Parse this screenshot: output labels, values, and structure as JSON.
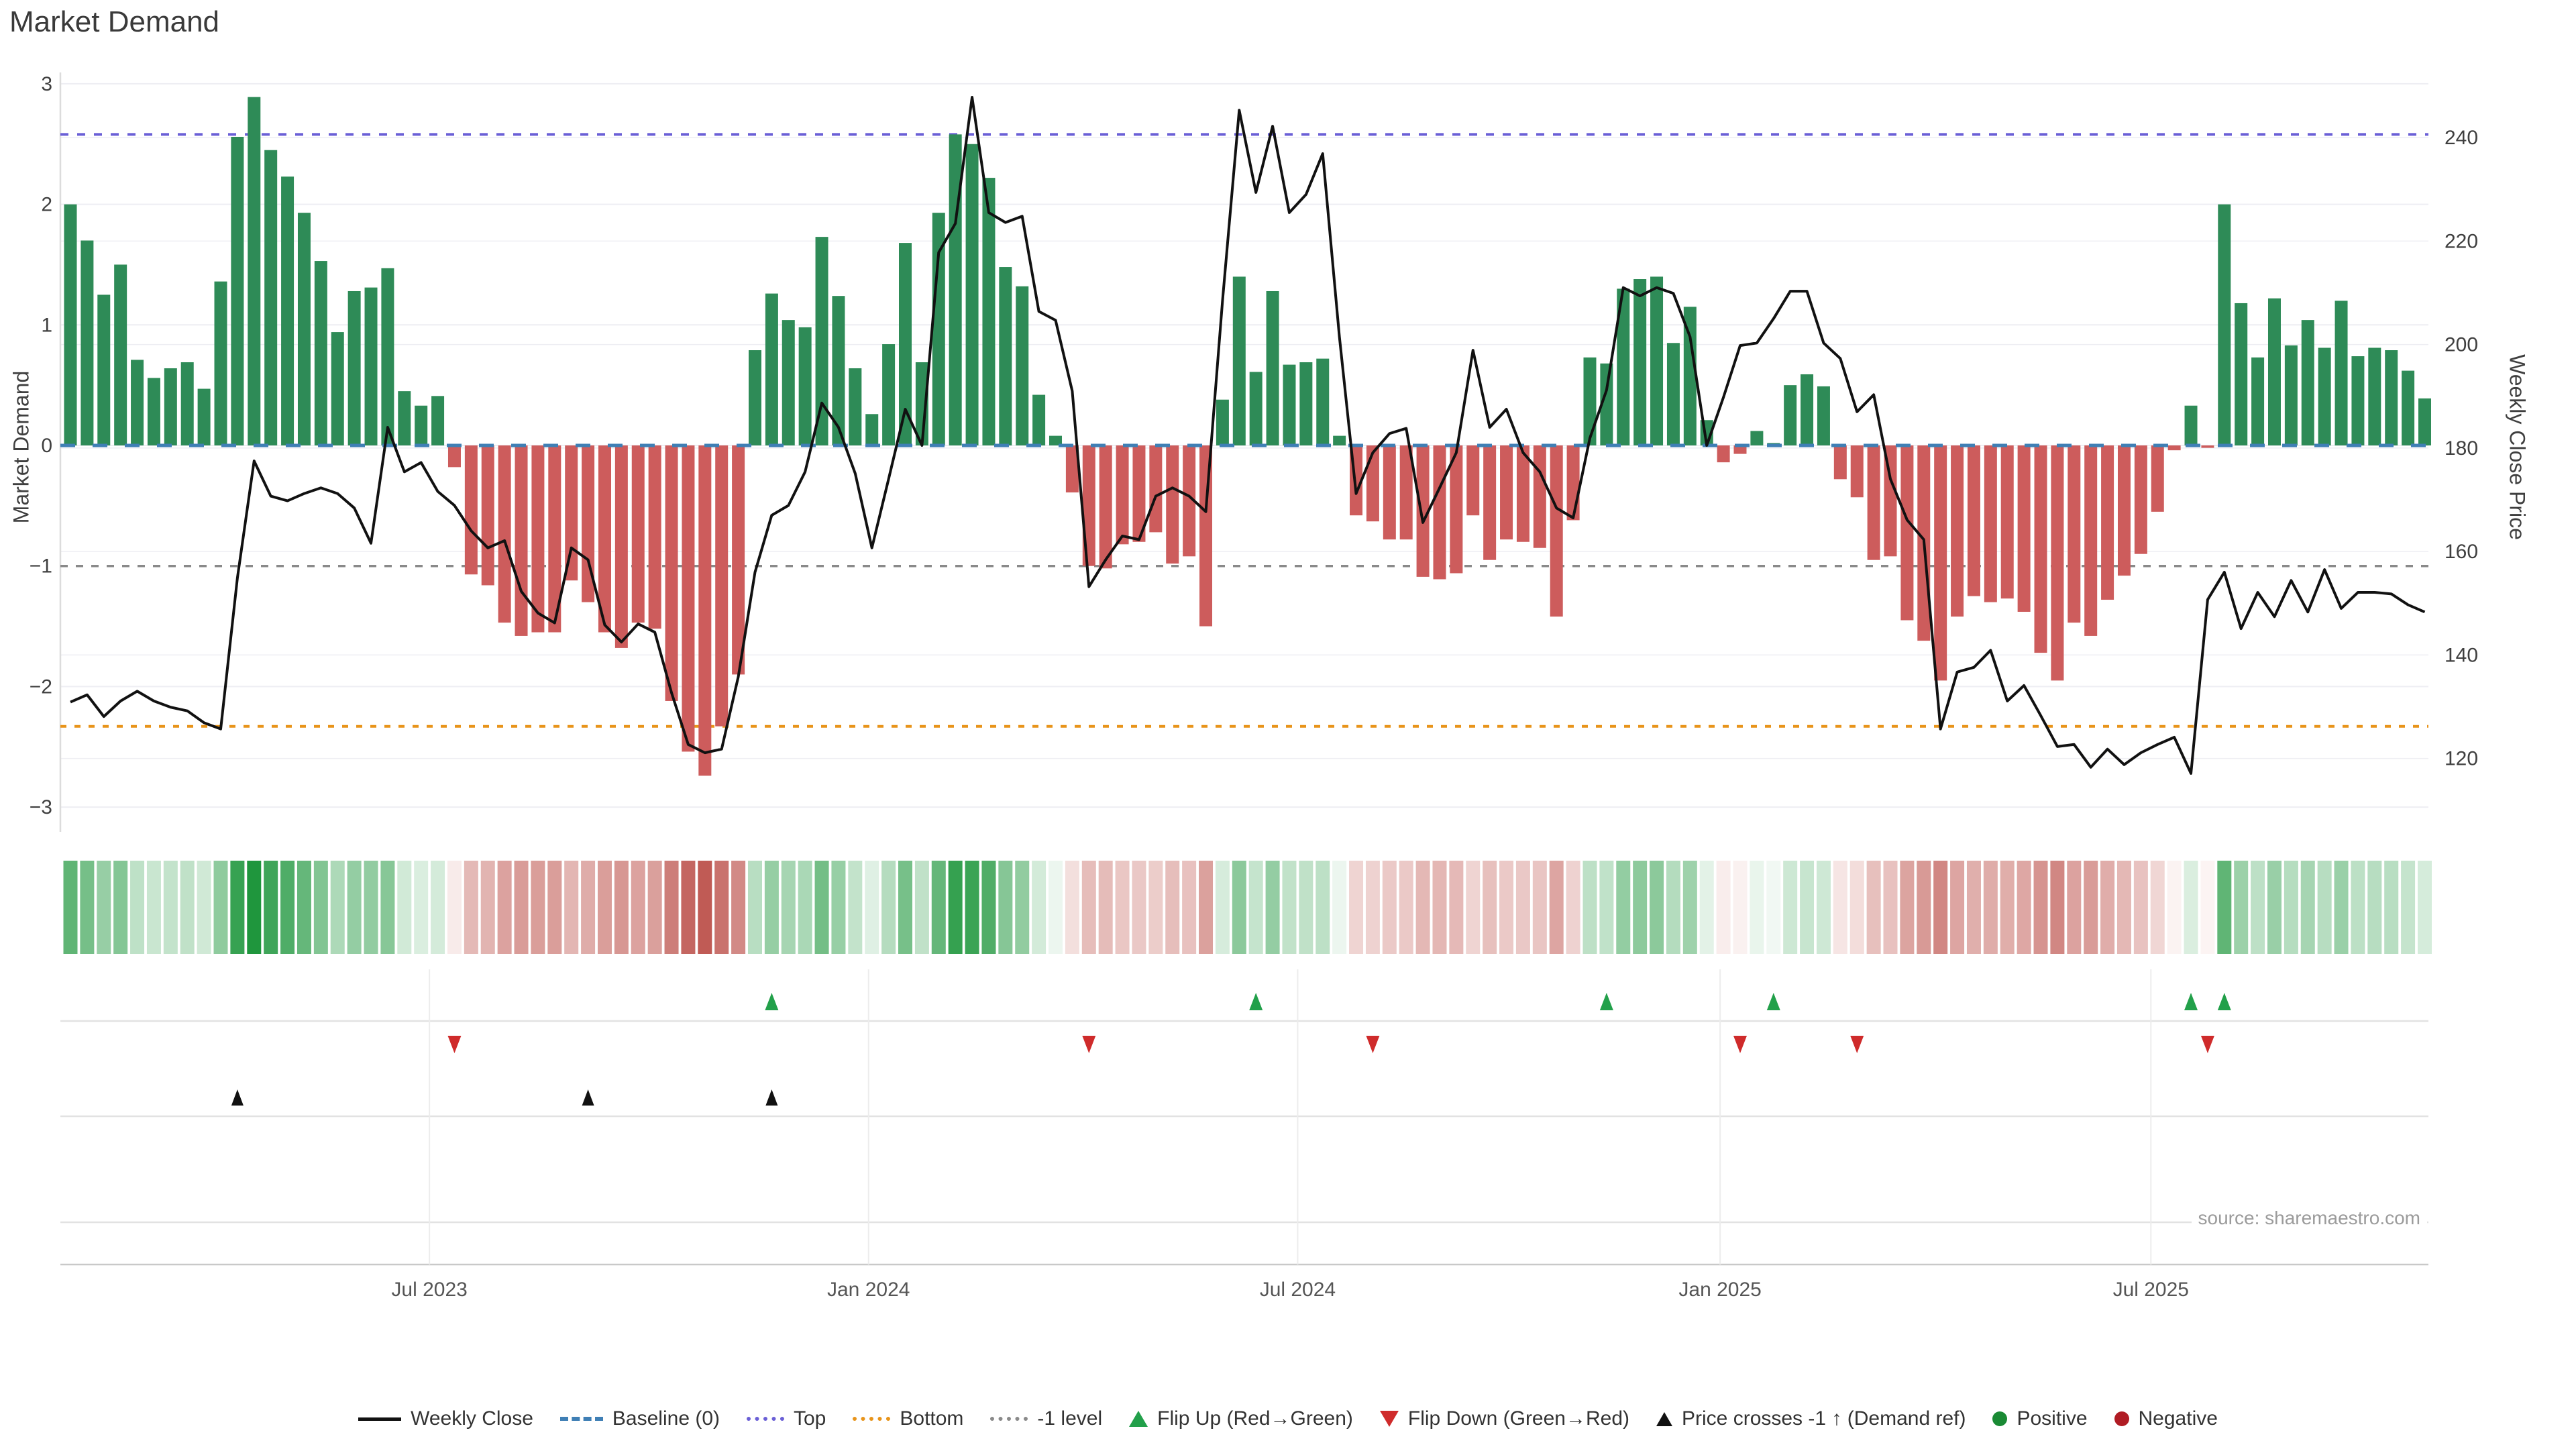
{
  "title": "Market Demand",
  "source": "source: sharemaestro.com",
  "y_left": {
    "label": "Market Demand",
    "ticks": [
      3,
      2,
      1,
      0,
      -1,
      -2,
      -3
    ]
  },
  "y_right": {
    "label": "Weekly Close Price",
    "ticks": [
      240,
      220,
      200,
      180,
      160,
      140,
      120
    ]
  },
  "colors": {
    "bar_positive": "#2e8b57",
    "bar_negative": "#cd5c5c",
    "price_line": "#111111",
    "baseline": "#3f7fb5",
    "top_line": "#6a5fd6",
    "bottom_line": "#e8941a",
    "minus1_line": "#8a8a8a",
    "flip_up": "#22a04a",
    "flip_down": "#cf2b2b",
    "price_cross": "#111111",
    "positive_dot": "#1a8a34",
    "negative_dot": "#b01c24",
    "grid": "#eeeef3",
    "separator": "#e2e2e2",
    "axis_line": "#c9c9c9",
    "tick_text": "#3f3f3f",
    "date_text": "#555555"
  },
  "legend": [
    {
      "label": "Weekly Close",
      "type": "line",
      "color": "#111111"
    },
    {
      "label": "Baseline (0)",
      "type": "dash",
      "color": "#3f7fb5"
    },
    {
      "label": "Top",
      "type": "dot",
      "color": "#6a5fd6"
    },
    {
      "label": "Bottom",
      "type": "dot",
      "color": "#e8941a"
    },
    {
      "label": "-1 level",
      "type": "dot",
      "color": "#8a8a8a"
    },
    {
      "label": "Flip Up (Red→Green)",
      "type": "tri-up",
      "color": "#22a04a"
    },
    {
      "label": "Flip Down (Green→Red)",
      "type": "tri-down",
      "color": "#cf2b2b"
    },
    {
      "label": "Price crosses -1 ↑ (Demand ref)",
      "type": "tri-up-black",
      "color": "#111111"
    },
    {
      "label": "Positive",
      "type": "circle",
      "color": "#1a8a34"
    },
    {
      "label": "Negative",
      "type": "circle",
      "color": "#b01c24"
    }
  ],
  "chart_data": {
    "type": "combo",
    "title": "Market Demand",
    "x_tick_labels": [
      "Jul 2023",
      "Jan 2024",
      "Jul 2024",
      "Jan 2025",
      "Jul 2025"
    ],
    "x_tick_positions": [
      21.5,
      47.8,
      73.5,
      98.8,
      124.6
    ],
    "ylim_left": [
      -3.15,
      3.15
    ],
    "left_ticks": [
      3,
      2,
      1,
      0,
      -1,
      -2,
      -3
    ],
    "right_ticks": [
      240,
      220,
      200,
      180,
      160,
      140,
      120
    ],
    "right_axis_map": {
      "price_at_zero": 180.5,
      "price_per_unit": 23.3
    },
    "ref_lines": {
      "baseline": 0,
      "top": 2.58,
      "bottom": -2.33,
      "minus1": -1
    },
    "series": [
      {
        "name": "Market Demand",
        "type": "bar",
        "axis": "left",
        "values": [
          2.0,
          1.7,
          1.25,
          1.5,
          0.71,
          0.56,
          0.64,
          0.69,
          0.47,
          1.36,
          2.56,
          2.89,
          2.45,
          2.23,
          1.93,
          1.53,
          0.94,
          1.28,
          1.31,
          1.47,
          0.45,
          0.33,
          0.41,
          -0.18,
          -1.07,
          -1.16,
          -1.47,
          -1.58,
          -1.55,
          -1.55,
          -1.12,
          -1.3,
          -1.55,
          -1.68,
          -1.47,
          -1.52,
          -2.12,
          -2.54,
          -2.74,
          -2.33,
          -1.9,
          0.79,
          1.26,
          1.04,
          0.98,
          1.73,
          1.24,
          0.64,
          0.26,
          0.84,
          1.68,
          0.69,
          1.93,
          2.58,
          2.5,
          2.22,
          1.48,
          1.32,
          0.42,
          0.08,
          -0.39,
          -1.0,
          -1.02,
          -0.82,
          -0.8,
          -0.72,
          -0.98,
          -0.92,
          -1.5,
          0.38,
          1.4,
          0.61,
          1.28,
          0.67,
          0.69,
          0.72,
          0.08,
          -0.58,
          -0.63,
          -0.78,
          -0.78,
          -1.09,
          -1.11,
          -1.06,
          -0.58,
          -0.95,
          -0.78,
          -0.8,
          -0.85,
          -1.42,
          -0.62,
          0.73,
          0.68,
          1.3,
          1.38,
          1.4,
          0.85,
          1.15,
          0.21,
          -0.14,
          -0.07,
          0.12,
          0.02,
          0.5,
          0.59,
          0.49,
          -0.28,
          -0.43,
          -0.95,
          -0.92,
          -1.45,
          -1.62,
          -1.95,
          -1.42,
          -1.25,
          -1.3,
          -1.27,
          -1.38,
          -1.72,
          -1.95,
          -1.47,
          -1.58,
          -1.28,
          -1.08,
          -0.9,
          -0.55,
          -0.04,
          0.33,
          -0.02,
          2.0,
          1.18,
          0.73,
          1.22,
          0.83,
          1.04,
          0.81,
          1.2,
          0.74,
          0.81,
          0.79,
          0.62,
          0.39
        ]
      },
      {
        "name": "Weekly Close",
        "type": "line",
        "axis": "right",
        "values": [
          130.9,
          132.3,
          128.1,
          131.1,
          133.0,
          131.1,
          129.9,
          129.2,
          126.9,
          125.7,
          154.9,
          177.5,
          170.7,
          169.8,
          171.2,
          172.3,
          171.2,
          168.4,
          161.6,
          184.0,
          175.4,
          177.2,
          171.6,
          168.9,
          164.0,
          160.7,
          162.1,
          152.3,
          148.1,
          146.2,
          160.7,
          158.4,
          145.8,
          142.5,
          146.0,
          144.4,
          132.7,
          122.7,
          121.1,
          121.8,
          135.8,
          156.0,
          167.0,
          168.9,
          175.4,
          188.7,
          184.0,
          175.1,
          160.7,
          174.0,
          187.5,
          180.5,
          217.8,
          223.4,
          247.8,
          225.5,
          223.6,
          224.8,
          206.4,
          204.7,
          191.0,
          153.2,
          158.4,
          163.0,
          162.3,
          170.7,
          172.3,
          170.7,
          167.7,
          208.5,
          245.3,
          229.4,
          242.2,
          225.5,
          229.0,
          236.9,
          201.5,
          171.2,
          179.1,
          182.8,
          183.8,
          165.6,
          172.3,
          179.1,
          198.9,
          184.0,
          187.5,
          179.1,
          175.4,
          168.4,
          166.5,
          181.9,
          191.2,
          211.0,
          209.4,
          211.0,
          209.9,
          201.5,
          180.5,
          189.8,
          199.8,
          200.3,
          205.0,
          210.3,
          210.3,
          200.3,
          197.3,
          187.0,
          190.3,
          174.0,
          166.1,
          162.3,
          125.7,
          136.7,
          137.6,
          140.9,
          131.1,
          134.1,
          128.3,
          122.3,
          122.7,
          118.3,
          121.8,
          118.8,
          121.1,
          122.7,
          124.1,
          117.1,
          150.7,
          156.0,
          145.1,
          152.1,
          147.4,
          154.4,
          148.3,
          156.5,
          149.0,
          152.1,
          152.1,
          151.8,
          149.7,
          148.3
        ]
      }
    ],
    "heatmap": {
      "note": "weekly strip shaded by Market Demand value",
      "derived_from": "Market Demand"
    },
    "markers": {
      "flip_up": [
        42,
        71,
        92,
        102,
        127,
        129
      ],
      "flip_down": [
        23,
        61,
        78,
        100,
        107,
        128
      ],
      "price_cross": [
        10,
        31,
        42
      ]
    }
  }
}
